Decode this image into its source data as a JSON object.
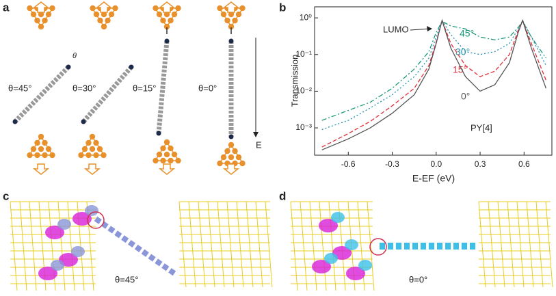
{
  "panels": {
    "a": {
      "label": "a",
      "labels": [
        "θ=45°",
        "θ=30°",
        "θ=15°",
        "θ=0°"
      ],
      "angle_mark": "θ",
      "field": "E"
    },
    "b": {
      "label": "b"
    },
    "c": {
      "label": "c",
      "caption": "θ=45°"
    },
    "d": {
      "label": "d",
      "caption": "θ=0°"
    }
  },
  "chart_data": {
    "type": "line",
    "y_label": "Transmission",
    "x_label": "E-EF (eV)",
    "log_y": true,
    "annotations": [
      "LUMO",
      "PY[4]"
    ],
    "xlim": [
      -0.83,
      0.79
    ],
    "ylim": [
      0.00018,
      2
    ],
    "xticks": [
      -0.6,
      -0.3,
      {
        "value": 0,
        "label": "0.0"
      },
      0.3,
      0.6
    ],
    "yticks": [
      {
        "value": 0.001,
        "label": "10⁻³"
      },
      {
        "value": 0.01,
        "label": "10⁻²"
      },
      {
        "value": 0.1,
        "label": "10⁻¹"
      },
      {
        "value": 1,
        "label": "10⁰"
      }
    ],
    "x": [
      -0.78,
      -0.6,
      -0.45,
      -0.3,
      -0.15,
      -0.05,
      0,
      0.04,
      0.1,
      0.2,
      0.3,
      0.4,
      0.5,
      0.56,
      0.59,
      0.65,
      0.75
    ],
    "series": [
      {
        "name": "45°",
        "color": "#1a9a7a",
        "dash": "7 3 2 3",
        "values": [
          0.0016,
          0.003,
          0.005,
          0.012,
          0.04,
          0.12,
          0.4,
          0.8,
          0.6,
          0.5,
          0.3,
          0.25,
          0.3,
          0.55,
          0.8,
          0.3,
          0.08
        ]
      },
      {
        "name": "30°",
        "color": "#1f8fae",
        "dash": "2 3",
        "values": [
          0.0009,
          0.0016,
          0.0035,
          0.008,
          0.025,
          0.08,
          0.3,
          0.85,
          0.35,
          0.12,
          0.1,
          0.12,
          0.2,
          0.5,
          0.85,
          0.3,
          0.05
        ]
      },
      {
        "name": "15°",
        "color": "#e0303a",
        "dash": "6 3",
        "values": [
          0.0003,
          0.0007,
          0.0015,
          0.004,
          0.012,
          0.05,
          0.22,
          0.85,
          0.2,
          0.05,
          0.025,
          0.035,
          0.1,
          0.45,
          0.85,
          0.2,
          0.02
        ]
      },
      {
        "name": "0°",
        "color": "#555555",
        "dash": "",
        "values": [
          0.00025,
          0.0005,
          0.001,
          0.0025,
          0.008,
          0.04,
          0.2,
          0.85,
          0.15,
          0.025,
          0.01,
          0.015,
          0.06,
          0.4,
          0.85,
          0.15,
          0.012
        ]
      }
    ]
  }
}
